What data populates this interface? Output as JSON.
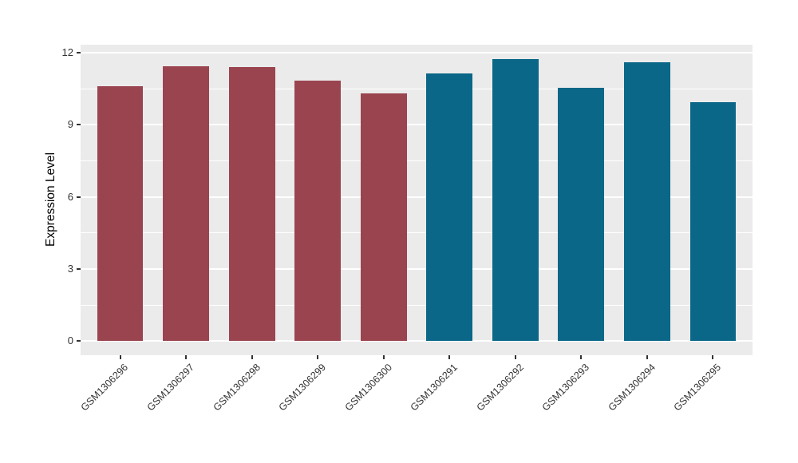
{
  "figure": {
    "background": "#FFFFFF",
    "panel_background": "#EBEBEB",
    "grid_color": "#FFFFFF",
    "tick_color": "#333333",
    "axis_text_color": "#333333",
    "axis_title_color": "#000000"
  },
  "chart_data": {
    "type": "bar",
    "title": "",
    "xlabel": "",
    "ylabel": "Expression Level",
    "categories": [
      "GSM1306296",
      "GSM1306297",
      "GSM1306298",
      "GSM1306299",
      "GSM1306300",
      "GSM1306291",
      "GSM1306292",
      "GSM1306293",
      "GSM1306294",
      "GSM1306295"
    ],
    "values": [
      10.6,
      11.45,
      11.4,
      10.85,
      10.3,
      11.15,
      11.75,
      10.55,
      11.6,
      9.95
    ],
    "colors": [
      "#9A4450",
      "#9A4450",
      "#9A4450",
      "#9A4450",
      "#9A4450",
      "#0B6787",
      "#0B6787",
      "#0B6787",
      "#0B6787",
      "#0B6787"
    ],
    "color_groups": [
      {
        "color": "#9A4450",
        "categories": [
          "GSM1306296",
          "GSM1306297",
          "GSM1306298",
          "GSM1306299",
          "GSM1306300"
        ]
      },
      {
        "color": "#0B6787",
        "categories": [
          "GSM1306291",
          "GSM1306292",
          "GSM1306293",
          "GSM1306294",
          "GSM1306295"
        ]
      }
    ],
    "y_ticks": [
      0,
      3,
      6,
      9,
      12
    ],
    "y_minor_ticks": [
      1.5,
      4.5,
      7.5,
      10.5
    ],
    "ylim": [
      -0.59,
      12.34
    ],
    "grid": true,
    "legend": false
  }
}
